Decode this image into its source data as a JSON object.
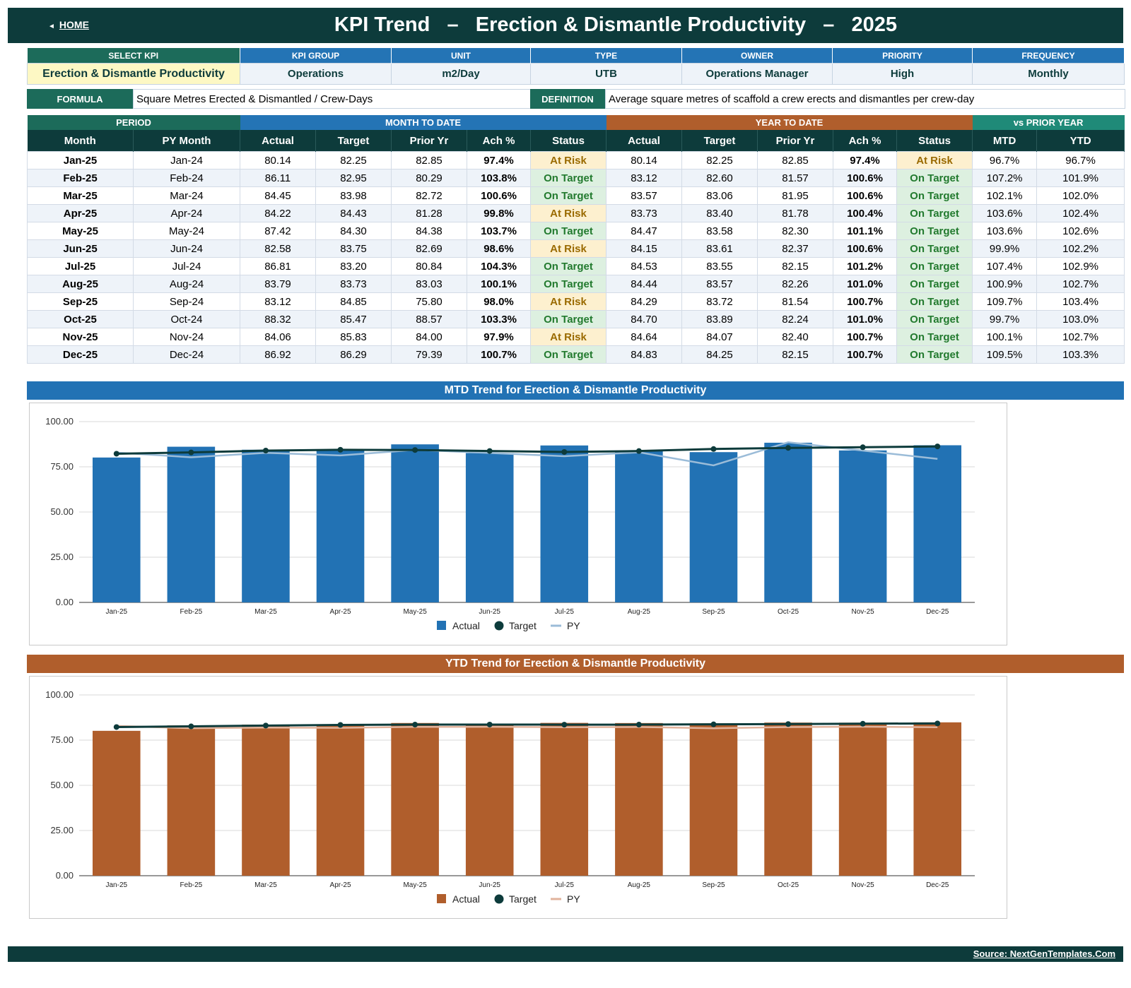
{
  "header": {
    "home_label": "HOME",
    "home_icon": "left-triangle-icon",
    "title": "KPI Trend   –   Erection & Dismantle Productivity   –   2025"
  },
  "info": {
    "headers": [
      "SELECT KPI",
      "KPI GROUP",
      "UNIT",
      "TYPE",
      "OWNER",
      "PRIORITY",
      "FREQUENCY"
    ],
    "values": [
      "Erection & Dismantle Productivity",
      "Operations",
      "m2/Day",
      "UTB",
      "Operations Manager",
      "High",
      "Monthly"
    ],
    "formula_label": "FORMULA",
    "formula": "Square Metres Erected & Dismantled / Crew-Days",
    "definition_label": "DEFINITION",
    "definition": "Average square metres of scaffold a crew erects and dismantles per crew-day"
  },
  "table": {
    "group_headers": [
      "PERIOD",
      "MONTH TO DATE",
      "YEAR TO DATE",
      "vs PRIOR YEAR"
    ],
    "columns": [
      "Month",
      "PY Month",
      "Actual",
      "Target",
      "Prior Yr",
      "Ach %",
      "Status",
      "Actual",
      "Target",
      "Prior Yr",
      "Ach %",
      "Status",
      "MTD",
      "YTD"
    ],
    "rows": [
      [
        "Jan-25",
        "Jan-24",
        "80.14",
        "82.25",
        "82.85",
        "97.4%",
        "At Risk",
        "80.14",
        "82.25",
        "82.85",
        "97.4%",
        "At Risk",
        "96.7%",
        "96.7%"
      ],
      [
        "Feb-25",
        "Feb-24",
        "86.11",
        "82.95",
        "80.29",
        "103.8%",
        "On Target",
        "83.12",
        "82.60",
        "81.57",
        "100.6%",
        "On Target",
        "107.2%",
        "101.9%"
      ],
      [
        "Mar-25",
        "Mar-24",
        "84.45",
        "83.98",
        "82.72",
        "100.6%",
        "On Target",
        "83.57",
        "83.06",
        "81.95",
        "100.6%",
        "On Target",
        "102.1%",
        "102.0%"
      ],
      [
        "Apr-25",
        "Apr-24",
        "84.22",
        "84.43",
        "81.28",
        "99.8%",
        "At Risk",
        "83.73",
        "83.40",
        "81.78",
        "100.4%",
        "On Target",
        "103.6%",
        "102.4%"
      ],
      [
        "May-25",
        "May-24",
        "87.42",
        "84.30",
        "84.38",
        "103.7%",
        "On Target",
        "84.47",
        "83.58",
        "82.30",
        "101.1%",
        "On Target",
        "103.6%",
        "102.6%"
      ],
      [
        "Jun-25",
        "Jun-24",
        "82.58",
        "83.75",
        "82.69",
        "98.6%",
        "At Risk",
        "84.15",
        "83.61",
        "82.37",
        "100.6%",
        "On Target",
        "99.9%",
        "102.2%"
      ],
      [
        "Jul-25",
        "Jul-24",
        "86.81",
        "83.20",
        "80.84",
        "104.3%",
        "On Target",
        "84.53",
        "83.55",
        "82.15",
        "101.2%",
        "On Target",
        "107.4%",
        "102.9%"
      ],
      [
        "Aug-25",
        "Aug-24",
        "83.79",
        "83.73",
        "83.03",
        "100.1%",
        "On Target",
        "84.44",
        "83.57",
        "82.26",
        "101.0%",
        "On Target",
        "100.9%",
        "102.7%"
      ],
      [
        "Sep-25",
        "Sep-24",
        "83.12",
        "84.85",
        "75.80",
        "98.0%",
        "At Risk",
        "84.29",
        "83.72",
        "81.54",
        "100.7%",
        "On Target",
        "109.7%",
        "103.4%"
      ],
      [
        "Oct-25",
        "Oct-24",
        "88.32",
        "85.47",
        "88.57",
        "103.3%",
        "On Target",
        "84.70",
        "83.89",
        "82.24",
        "101.0%",
        "On Target",
        "99.7%",
        "103.0%"
      ],
      [
        "Nov-25",
        "Nov-24",
        "84.06",
        "85.83",
        "84.00",
        "97.9%",
        "At Risk",
        "84.64",
        "84.07",
        "82.40",
        "100.7%",
        "On Target",
        "100.1%",
        "102.7%"
      ],
      [
        "Dec-25",
        "Dec-24",
        "86.92",
        "86.29",
        "79.39",
        "100.7%",
        "On Target",
        "84.83",
        "84.25",
        "82.15",
        "100.7%",
        "On Target",
        "109.5%",
        "103.3%"
      ]
    ]
  },
  "colors": {
    "dark": "#0d3b3b",
    "mtd_blue": "#2272b4",
    "ytd_orange": "#b05e2c",
    "mtd_py": "#9bbcd8",
    "ytd_py": "#e1b39c"
  },
  "footer": {
    "source": "Source: NextGenTemplates.Com"
  },
  "chart_data": [
    {
      "type": "bar",
      "title": "MTD Trend for Erection & Dismantle Productivity",
      "categories": [
        "Jan-25",
        "Feb-25",
        "Mar-25",
        "Apr-25",
        "May-25",
        "Jun-25",
        "Jul-25",
        "Aug-25",
        "Sep-25",
        "Oct-25",
        "Nov-25",
        "Dec-25"
      ],
      "series": [
        {
          "name": "Actual",
          "kind": "bar",
          "values": [
            80.14,
            86.11,
            84.45,
            84.22,
            87.42,
            82.58,
            86.81,
            83.79,
            83.12,
            88.32,
            84.06,
            86.92
          ]
        },
        {
          "name": "Target",
          "kind": "line-markers",
          "values": [
            82.25,
            82.95,
            83.98,
            84.43,
            84.3,
            83.75,
            83.2,
            83.73,
            84.85,
            85.47,
            85.83,
            86.29
          ]
        },
        {
          "name": "PY",
          "kind": "line",
          "values": [
            82.85,
            80.29,
            82.72,
            81.28,
            84.38,
            82.69,
            80.84,
            83.03,
            75.8,
            88.57,
            84.0,
            79.39
          ]
        }
      ],
      "yticks": [
        "0.00",
        "25.00",
        "50.00",
        "75.00",
        "100.00"
      ],
      "ylim": [
        0,
        100
      ],
      "grid": true,
      "legend": "bottom-center"
    },
    {
      "type": "bar",
      "title": "YTD Trend for Erection & Dismantle Productivity",
      "categories": [
        "Jan-25",
        "Feb-25",
        "Mar-25",
        "Apr-25",
        "May-25",
        "Jun-25",
        "Jul-25",
        "Aug-25",
        "Sep-25",
        "Oct-25",
        "Nov-25",
        "Dec-25"
      ],
      "series": [
        {
          "name": "Actual",
          "kind": "bar",
          "values": [
            80.14,
            83.12,
            83.57,
            83.73,
            84.47,
            84.15,
            84.53,
            84.44,
            84.29,
            84.7,
            84.64,
            84.83
          ]
        },
        {
          "name": "Target",
          "kind": "line-markers",
          "values": [
            82.25,
            82.6,
            83.06,
            83.4,
            83.58,
            83.61,
            83.55,
            83.57,
            83.72,
            83.89,
            84.07,
            84.25
          ]
        },
        {
          "name": "PY",
          "kind": "line",
          "values": [
            82.85,
            81.57,
            81.95,
            81.78,
            82.3,
            82.37,
            82.15,
            82.26,
            81.54,
            82.24,
            82.4,
            82.15
          ]
        }
      ],
      "yticks": [
        "0.00",
        "25.00",
        "50.00",
        "75.00",
        "100.00"
      ],
      "ylim": [
        0,
        100
      ],
      "grid": true,
      "legend": "bottom-center"
    }
  ]
}
